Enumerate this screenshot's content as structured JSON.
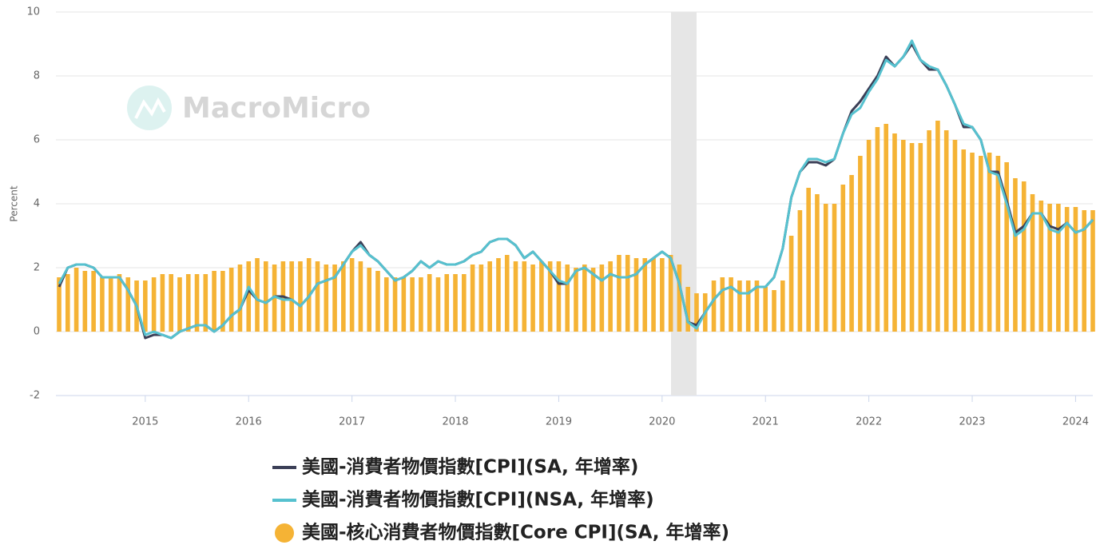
{
  "chart_data": {
    "type": "combo",
    "watermark": "MacroMicro",
    "y_label": "Percent",
    "categories": [
      null,
      null,
      null,
      null,
      null,
      null,
      null,
      null,
      null,
      null,
      "2015",
      null,
      null,
      null,
      null,
      null,
      null,
      null,
      null,
      null,
      null,
      null,
      "2016",
      null,
      null,
      null,
      null,
      null,
      null,
      null,
      null,
      null,
      null,
      null,
      "2017",
      null,
      null,
      null,
      null,
      null,
      null,
      null,
      null,
      null,
      null,
      null,
      "2018",
      null,
      null,
      null,
      null,
      null,
      null,
      null,
      null,
      null,
      null,
      null,
      "2019",
      null,
      null,
      null,
      null,
      null,
      null,
      null,
      null,
      null,
      null,
      null,
      "2020",
      null,
      null,
      null,
      null,
      null,
      null,
      null,
      null,
      null,
      null,
      null,
      "2021",
      null,
      null,
      null,
      null,
      null,
      null,
      null,
      null,
      null,
      null,
      null,
      "2022",
      null,
      null,
      null,
      null,
      null,
      null,
      null,
      null,
      null,
      null,
      null,
      "2023",
      null,
      null,
      null,
      null,
      null,
      null,
      null,
      null,
      null,
      null,
      null,
      "2024",
      null,
      null
    ],
    "series": [
      {
        "name": "美國-消費者物價指數[CPI](SA, 年增率)",
        "type": "line",
        "color": "#3b3f57",
        "values": [
          1.4,
          2.0,
          2.1,
          2.1,
          2.0,
          1.7,
          1.7,
          1.7,
          1.3,
          0.8,
          -0.2,
          -0.1,
          -0.1,
          -0.2,
          0.0,
          0.1,
          0.2,
          0.2,
          0.0,
          0.2,
          0.5,
          0.7,
          1.3,
          1.0,
          0.9,
          1.1,
          1.1,
          1.0,
          0.8,
          1.1,
          1.5,
          1.6,
          1.7,
          2.1,
          2.5,
          2.8,
          2.4,
          2.2,
          1.9,
          1.6,
          1.7,
          1.9,
          2.2,
          2.0,
          2.2,
          2.1,
          2.1,
          2.2,
          2.4,
          2.5,
          2.8,
          2.9,
          2.9,
          2.7,
          2.3,
          2.5,
          2.2,
          1.9,
          1.5,
          1.5,
          1.9,
          2.0,
          1.8,
          1.6,
          1.8,
          1.7,
          1.7,
          1.8,
          2.1,
          2.3,
          2.5,
          2.3,
          1.5,
          0.3,
          0.2,
          0.6,
          1.0,
          1.3,
          1.4,
          1.2,
          1.2,
          1.4,
          1.4,
          1.7,
          2.6,
          4.2,
          5.0,
          5.3,
          5.3,
          5.2,
          5.4,
          6.2,
          6.9,
          7.2,
          7.6,
          8.0,
          8.6,
          8.3,
          8.6,
          9.0,
          8.5,
          8.2,
          8.2,
          7.7,
          7.1,
          6.4,
          6.4,
          6.0,
          5.0,
          5.0,
          4.1,
          3.1,
          3.3,
          3.7,
          3.7,
          3.3,
          3.2,
          3.4,
          3.1,
          3.2,
          3.5
        ]
      },
      {
        "name": "美國-消費者物價指數[CPI](NSA, 年增率)",
        "type": "line",
        "color": "#56c1cf",
        "values": [
          1.5,
          2.0,
          2.1,
          2.1,
          2.0,
          1.7,
          1.7,
          1.7,
          1.3,
          0.8,
          -0.1,
          0.0,
          -0.1,
          -0.2,
          0.0,
          0.1,
          0.2,
          0.2,
          0.0,
          0.2,
          0.5,
          0.7,
          1.4,
          1.0,
          0.9,
          1.1,
          1.0,
          1.0,
          0.8,
          1.1,
          1.5,
          1.6,
          1.7,
          2.1,
          2.5,
          2.7,
          2.4,
          2.2,
          1.9,
          1.6,
          1.7,
          1.9,
          2.2,
          2.0,
          2.2,
          2.1,
          2.1,
          2.2,
          2.4,
          2.5,
          2.8,
          2.9,
          2.9,
          2.7,
          2.3,
          2.5,
          2.2,
          1.9,
          1.6,
          1.5,
          1.9,
          2.0,
          1.8,
          1.6,
          1.8,
          1.7,
          1.7,
          1.8,
          2.1,
          2.3,
          2.5,
          2.3,
          1.5,
          0.3,
          0.1,
          0.6,
          1.0,
          1.3,
          1.4,
          1.2,
          1.2,
          1.4,
          1.4,
          1.7,
          2.6,
          4.2,
          5.0,
          5.4,
          5.4,
          5.3,
          5.4,
          6.2,
          6.8,
          7.0,
          7.5,
          7.9,
          8.5,
          8.3,
          8.6,
          9.1,
          8.5,
          8.3,
          8.2,
          7.7,
          7.1,
          6.5,
          6.4,
          6.0,
          5.0,
          4.9,
          4.0,
          3.0,
          3.2,
          3.7,
          3.7,
          3.2,
          3.1,
          3.4,
          3.1,
          3.2,
          3.5
        ]
      },
      {
        "name": "美國-核心消費者物價指數[Core CPI](SA, 年增率)",
        "type": "bar",
        "color": "#f5b335",
        "values": [
          1.7,
          1.8,
          2.0,
          1.9,
          1.9,
          1.7,
          1.7,
          1.8,
          1.7,
          1.6,
          1.6,
          1.7,
          1.8,
          1.8,
          1.7,
          1.8,
          1.8,
          1.8,
          1.9,
          1.9,
          2.0,
          2.1,
          2.2,
          2.3,
          2.2,
          2.1,
          2.2,
          2.2,
          2.2,
          2.3,
          2.2,
          2.1,
          2.1,
          2.2,
          2.3,
          2.2,
          2.0,
          1.9,
          1.7,
          1.7,
          1.7,
          1.7,
          1.7,
          1.8,
          1.7,
          1.8,
          1.8,
          1.8,
          2.1,
          2.1,
          2.2,
          2.3,
          2.4,
          2.2,
          2.2,
          2.1,
          2.2,
          2.2,
          2.2,
          2.1,
          2.0,
          2.1,
          2.0,
          2.1,
          2.2,
          2.4,
          2.4,
          2.3,
          2.3,
          2.3,
          2.3,
          2.4,
          2.1,
          1.4,
          1.2,
          1.2,
          1.6,
          1.7,
          1.7,
          1.6,
          1.6,
          1.6,
          1.4,
          1.3,
          1.6,
          3.0,
          3.8,
          4.5,
          4.3,
          4.0,
          4.0,
          4.6,
          4.9,
          5.5,
          6.0,
          6.4,
          6.5,
          6.2,
          6.0,
          5.9,
          5.9,
          6.3,
          6.6,
          6.3,
          6.0,
          5.7,
          5.6,
          5.5,
          5.6,
          5.5,
          5.3,
          4.8,
          4.7,
          4.3,
          4.1,
          4.0,
          4.0,
          3.9,
          3.9,
          3.8,
          3.8
        ]
      }
    ],
    "ylim": [
      -2,
      10
    ],
    "yticks": [
      -2,
      0,
      2,
      4,
      6,
      8,
      10
    ],
    "grid": true
  }
}
